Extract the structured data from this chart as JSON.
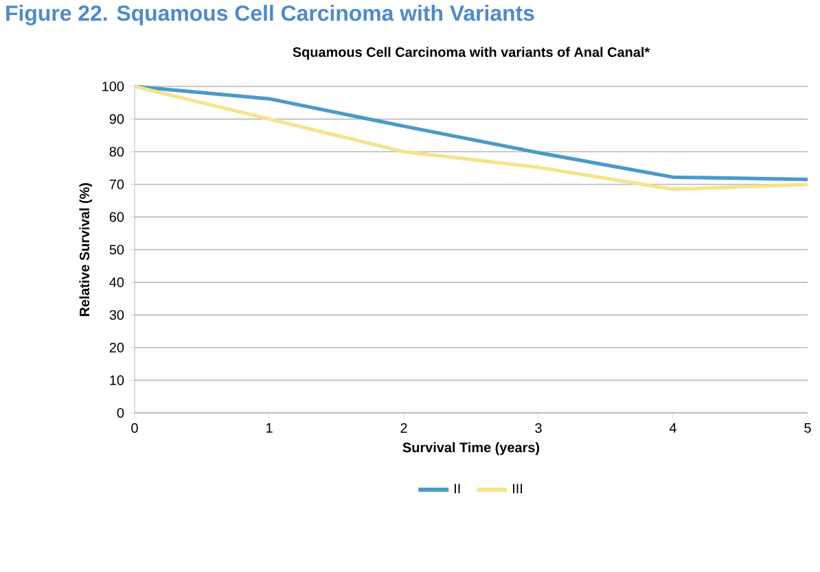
{
  "chart_data": {
    "type": "line",
    "title": "Squamous Cell Carcinoma with variants of Anal Canal*",
    "annotations": [
      "Figure 22. Squamous Cell Carcinoma with Variants"
    ],
    "xlabel": "Survival Time (years)",
    "ylabel": "Relative Survival (%)",
    "x": [
      0,
      1,
      2,
      3,
      4,
      5
    ],
    "series": [
      {
        "name": "II",
        "color": "#4a9ac8",
        "values": [
          100,
          96.2,
          87.8,
          79.7,
          72.2,
          71.5
        ]
      },
      {
        "name": "III",
        "color": "#f5e48e",
        "values": [
          100,
          90,
          80,
          75.2,
          68.5,
          70
        ]
      }
    ],
    "xlim": [
      0,
      5
    ],
    "xticks": [
      0,
      1,
      2,
      3,
      4,
      5
    ],
    "ylim": [
      0,
      100
    ],
    "yticks": [
      0,
      10,
      20,
      30,
      40,
      50,
      60,
      70,
      80,
      90,
      100
    ],
    "grid": "y",
    "legend": "bottom",
    "marker": "none",
    "line_style": "solid"
  }
}
